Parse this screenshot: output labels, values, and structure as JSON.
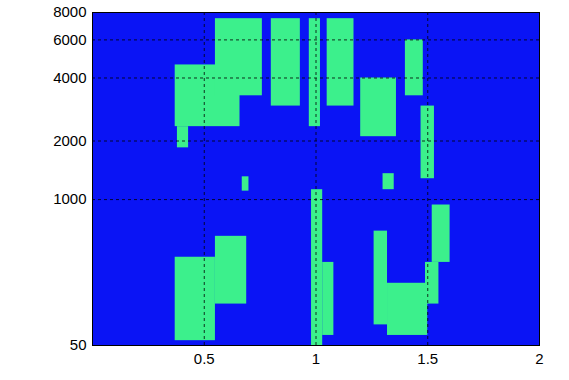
{
  "chart_data": {
    "type": "heatmap",
    "xlim": [
      0,
      2
    ],
    "xticks": [
      0.5,
      1,
      1.5,
      2
    ],
    "ylim": [
      50,
      8000
    ],
    "yticks": [
      50,
      1000,
      2000,
      4000,
      6000,
      8000
    ],
    "grid": true,
    "colors": [
      "#0a14f5",
      "#3cf08c"
    ],
    "regions": [
      {
        "t": [
          0.37,
          0.66
        ],
        "f": [
          2350,
          4600
        ]
      },
      {
        "t": [
          0.55,
          0.76
        ],
        "f": [
          3300,
          7500
        ]
      },
      {
        "t": [
          0.38,
          0.43
        ],
        "f": [
          1850,
          2350
        ]
      },
      {
        "t": [
          0.8,
          0.93
        ],
        "f": [
          2950,
          7500
        ]
      },
      {
        "t": [
          0.97,
          1.02
        ],
        "f": [
          2350,
          7500
        ]
      },
      {
        "t": [
          1.05,
          1.17
        ],
        "f": [
          2950,
          7500
        ]
      },
      {
        "t": [
          1.2,
          1.36
        ],
        "f": [
          2100,
          4000
        ]
      },
      {
        "t": [
          1.4,
          1.48
        ],
        "f": [
          3300,
          6000
        ]
      },
      {
        "t": [
          1.47,
          1.53
        ],
        "f": [
          1290,
          2950
        ]
      },
      {
        "t": [
          1.3,
          1.35
        ],
        "f": [
          1130,
          1370
        ]
      },
      {
        "t": [
          0.67,
          0.7
        ],
        "f": [
          1110,
          1320
        ]
      },
      {
        "t": [
          0.37,
          0.55
        ],
        "f": [
          64,
          455
        ]
      },
      {
        "t": [
          0.55,
          0.69
        ],
        "f": [
          196,
          617
        ]
      },
      {
        "t": [
          0.98,
          1.03
        ],
        "f": [
          50,
          1130
        ]
      },
      {
        "t": [
          1.03,
          1.08
        ],
        "f": [
          80,
          420
        ]
      },
      {
        "t": [
          1.26,
          1.32
        ],
        "f": [
          115,
          663
        ]
      },
      {
        "t": [
          1.32,
          1.5
        ],
        "f": [
          80,
          296
        ]
      },
      {
        "t": [
          1.52,
          1.6
        ],
        "f": [
          420,
          934
        ]
      },
      {
        "t": [
          1.49,
          1.55
        ],
        "f": [
          196,
          420
        ]
      }
    ]
  }
}
